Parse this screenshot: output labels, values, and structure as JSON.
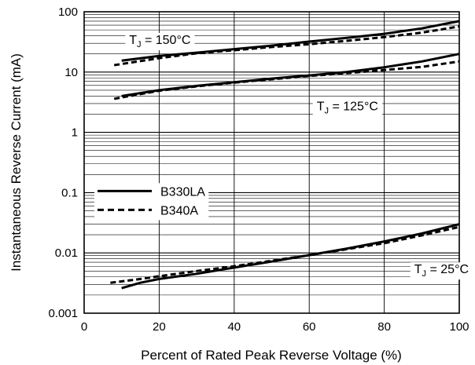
{
  "chart_data": {
    "type": "line",
    "xlabel": "Percent of Rated Peak Reverse Voltage (%)",
    "ylabel": "Instantaneous Reverse Current (mA)",
    "xlim": [
      0,
      100
    ],
    "ylim": [
      0.001,
      100
    ],
    "yscale": "log",
    "grid": true,
    "legend": "left-middle",
    "x_ticks": [
      0,
      20,
      40,
      60,
      80,
      100
    ],
    "y_ticks": [
      0.001,
      0.01,
      0.1,
      1,
      10,
      100
    ],
    "x_tick_labels": [
      "0",
      "20",
      "40",
      "60",
      "80",
      "100"
    ],
    "y_tick_labels": [
      "0.001",
      "0.01",
      "0.1",
      "1",
      "10",
      "100"
    ],
    "legend_entries": [
      {
        "name": "B330LA",
        "style": "solid"
      },
      {
        "name": "B340A",
        "style": "dashed"
      }
    ],
    "annotations": [
      {
        "text_main": "T",
        "text_sub": "J",
        "text_rest": " = 150°C",
        "x": 12,
        "y": 35
      },
      {
        "text_main": "T",
        "text_sub": "J",
        "text_rest": " = 125°C",
        "x": 62,
        "y": 2.8
      },
      {
        "text_main": "T",
        "text_sub": "J",
        "text_rest": " = 25°C",
        "x": 88,
        "y": 0.0055
      }
    ],
    "series": [
      {
        "name": "B330LA",
        "group": "150°C",
        "style": "solid",
        "x": [
          10,
          20,
          30,
          40,
          50,
          60,
          70,
          80,
          90,
          100
        ],
        "y": [
          15.5,
          18.5,
          21,
          24,
          27.5,
          32,
          37,
          43,
          53,
          70
        ]
      },
      {
        "name": "B340A",
        "group": "150°C",
        "style": "dashed",
        "x": [
          8,
          20,
          30,
          40,
          50,
          60,
          70,
          80,
          90,
          100
        ],
        "y": [
          13,
          17,
          20.5,
          23,
          26,
          29,
          33,
          38,
          45,
          57
        ]
      },
      {
        "name": "B330LA",
        "group": "125°C",
        "style": "solid",
        "x": [
          10,
          20,
          30,
          40,
          50,
          60,
          70,
          80,
          90,
          100
        ],
        "y": [
          4,
          5,
          5.9,
          6.8,
          7.8,
          8.8,
          10,
          12,
          15,
          20
        ]
      },
      {
        "name": "B340A",
        "group": "125°C",
        "style": "dashed",
        "x": [
          8,
          20,
          30,
          40,
          50,
          60,
          70,
          80,
          90,
          100
        ],
        "y": [
          3.6,
          4.9,
          5.8,
          6.7,
          7.6,
          8.6,
          9.6,
          10.8,
          12.2,
          15
        ]
      },
      {
        "name": "B330LA",
        "group": "25°C",
        "style": "solid",
        "x": [
          10,
          15,
          20,
          30,
          40,
          50,
          60,
          70,
          80,
          90,
          100
        ],
        "y": [
          0.0026,
          0.0032,
          0.0037,
          0.0045,
          0.0057,
          0.0072,
          0.0092,
          0.0118,
          0.0155,
          0.021,
          0.03
        ]
      },
      {
        "name": "B340A",
        "group": "25°C",
        "style": "dashed",
        "x": [
          7,
          15,
          20,
          30,
          40,
          50,
          60,
          70,
          80,
          90,
          100
        ],
        "y": [
          0.0032,
          0.0037,
          0.0041,
          0.005,
          0.006,
          0.0074,
          0.0092,
          0.0115,
          0.0145,
          0.0195,
          0.027
        ]
      }
    ]
  }
}
